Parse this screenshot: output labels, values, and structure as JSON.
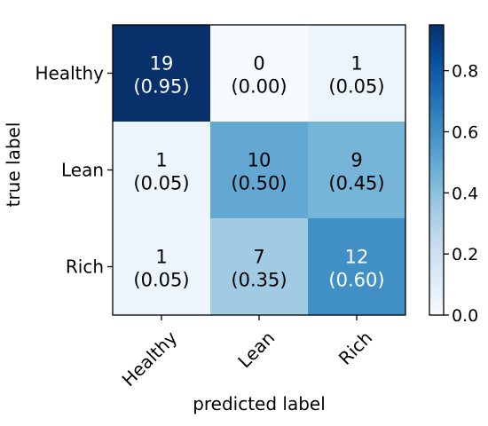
{
  "chart_data": {
    "type": "heatmap",
    "title": "",
    "xlabel": "predicted label",
    "ylabel": "true label",
    "x_categories": [
      "Healthy",
      "Lean",
      "Rich"
    ],
    "y_categories": [
      "Healthy",
      "Lean",
      "Rich"
    ],
    "counts": [
      [
        19,
        0,
        1
      ],
      [
        1,
        10,
        9
      ],
      [
        1,
        7,
        12
      ]
    ],
    "fraction_labels": [
      [
        "(0.95)",
        "(0.00)",
        "(0.05)"
      ],
      [
        "(0.05)",
        "(0.50)",
        "(0.45)"
      ],
      [
        "(0.05)",
        "(0.35)",
        "(0.60)"
      ]
    ],
    "fractions": [
      [
        0.95,
        0.0,
        0.05
      ],
      [
        0.05,
        0.5,
        0.45
      ],
      [
        0.05,
        0.35,
        0.6
      ]
    ],
    "colorbar": {
      "colormap": "Blues",
      "range": [
        0,
        0.95
      ],
      "ticks": [
        "0.0",
        "0.2",
        "0.4",
        "0.6",
        "0.8"
      ],
      "tick_values": [
        0,
        0.2,
        0.4,
        0.6,
        0.8
      ]
    },
    "text_color_light": "#ffffff",
    "text_color_dark": "#000000"
  }
}
